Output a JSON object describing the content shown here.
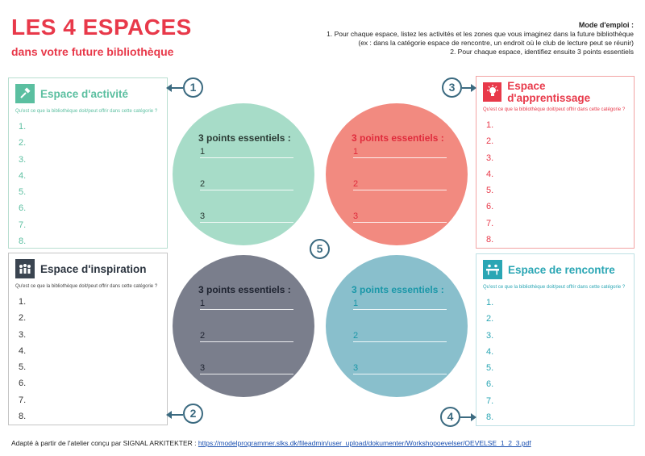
{
  "header": {
    "title": "LES 4 ESPACES",
    "subtitle": "dans votre future bibliothèque"
  },
  "instructions": {
    "title": "Mode d'emploi :",
    "line1": "1.    Pour chaque espace, listez les activités et les zones que vous imaginez dans la future bibliothèque",
    "line2": "(ex : dans la catégorie espace de rencontre, un endroit où le club de lecture peut se réunir)",
    "line3": "2.    Pour chaque espace, identifiez ensuite 3 points essentiels"
  },
  "question": "Qu'est ce que la bibliothèque doit/peut offrir dans cette catégorie ?",
  "list_numbers": [
    "1.",
    "2.",
    "3.",
    "4.",
    "5.",
    "6.",
    "7.",
    "8."
  ],
  "panels": {
    "activite": {
      "title": "Espace d'activité",
      "icon": "hammer-icon",
      "color": "#5bbfa0"
    },
    "inspiration": {
      "title": "Espace d'inspiration",
      "icon": "people-icon",
      "color": "#3a4450"
    },
    "apprentissage": {
      "title": "Espace d'apprentissage",
      "icon": "lightbulb-icon",
      "color": "#e8394a"
    },
    "rencontre": {
      "title": "Espace de rencontre",
      "icon": "meeting-table-icon",
      "color": "#2aa6b4"
    }
  },
  "circles": {
    "title": "3 points essentiels :",
    "numbers": [
      "1",
      "2",
      "3"
    ]
  },
  "badges": [
    "1",
    "2",
    "3",
    "4",
    "5"
  ],
  "footer": {
    "text": "Adapté à partir de l'atelier conçu par SIGNAL ARKITEKTER : ",
    "link": "https://modelprogrammer.slks.dk/fileadmin/user_upload/dokumenter/Workshopoevelser/OEVELSE_1_2_3.pdf"
  }
}
